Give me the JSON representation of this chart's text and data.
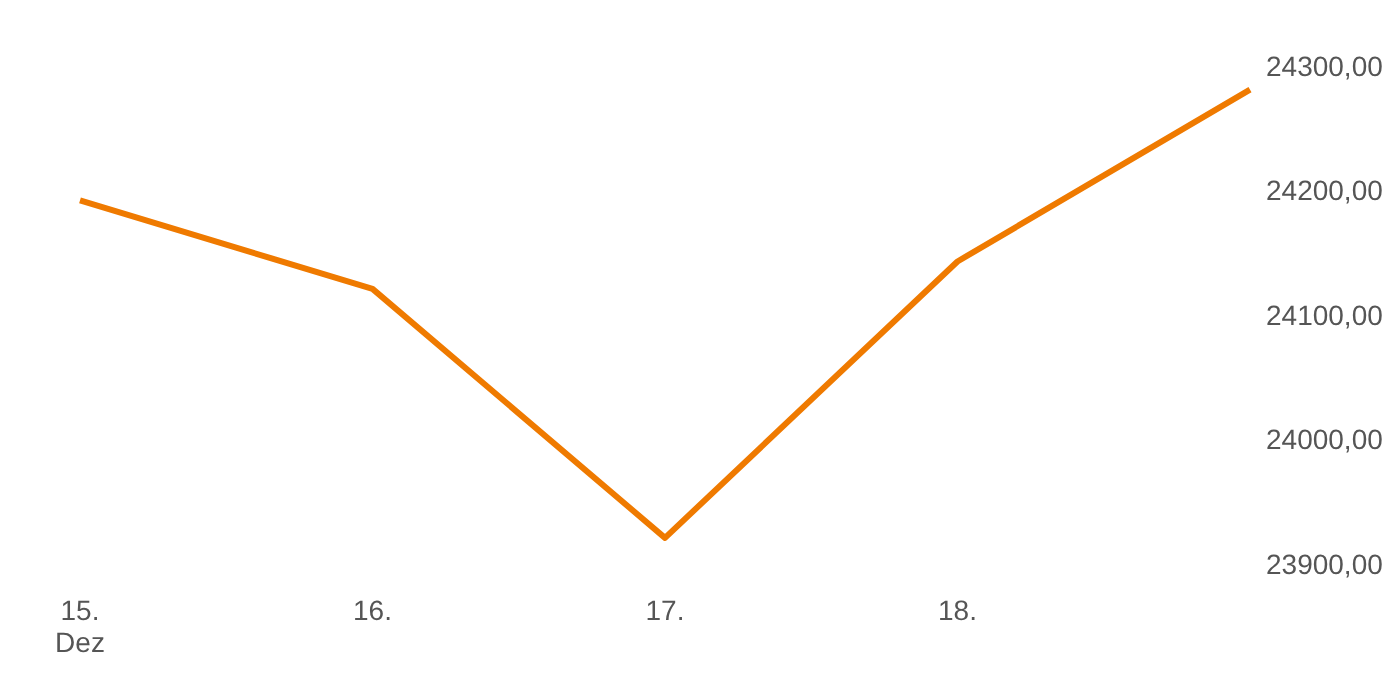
{
  "chart_data": {
    "type": "line",
    "categories": [
      "15.\nDez",
      "16.",
      "17.",
      "18.",
      null
    ],
    "series": [
      {
        "color": "#ef7a00",
        "values": [
          24192,
          24121,
          23921,
          24143,
          24281
        ]
      }
    ],
    "ylim": [
      23900,
      24300
    ],
    "yticks": [
      {
        "value": 23900,
        "label": "23900,00"
      },
      {
        "value": 24000,
        "label": "24000,00"
      },
      {
        "value": 24100,
        "label": "24100,00"
      },
      {
        "value": 24200,
        "label": "24200,00"
      },
      {
        "value": 24300,
        "label": "24300,00"
      }
    ],
    "grid": false,
    "legend": false,
    "marker": "none",
    "line_style": "solid"
  }
}
